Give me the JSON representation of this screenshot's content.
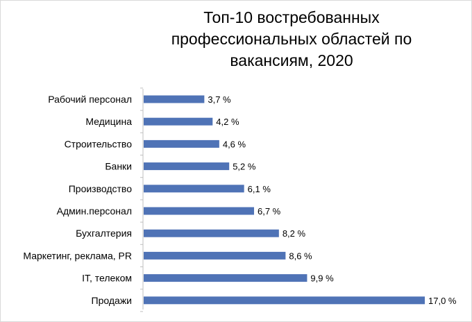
{
  "chart_data": {
    "type": "bar",
    "orientation": "horizontal",
    "title": "Топ-10 востребованных\nпрофессиональных областей по\nвакансиям, 2020",
    "categories": [
      "Рабочий персонал",
      "Медицина",
      "Строительство",
      "Банки",
      "Производство",
      "Админ.персонал",
      "Бухгалтерия",
      "Маркетинг, реклама, PR",
      "IT, телеком",
      "Продажи"
    ],
    "values": [
      3.7,
      4.2,
      4.6,
      5.2,
      6.1,
      6.7,
      8.2,
      8.6,
      9.9,
      17.0
    ],
    "value_labels": [
      "3,7 %",
      "4,2 %",
      "4,6 %",
      "5,2 %",
      "6,1 %",
      "6,7 %",
      "8,2 %",
      "8,6 %",
      "9,9 %",
      "17,0 %"
    ],
    "xlim": [
      0,
      17.0
    ],
    "grid": false,
    "legend": "none",
    "bar_color": "#4f73b6",
    "axis_color": "#bfbfbf"
  }
}
